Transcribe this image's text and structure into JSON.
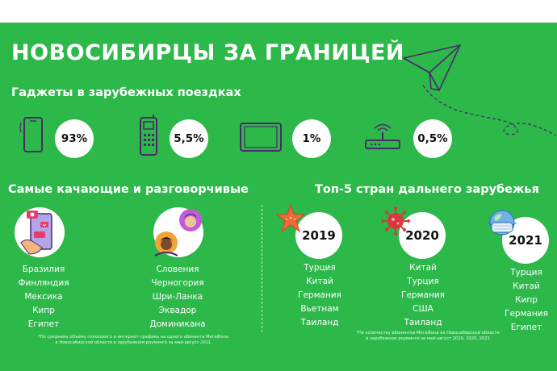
{
  "title": "НОВОСИБИРЦЫ ЗА ГРАНИЦЕЙ",
  "gadgets": {
    "heading": "Гаджеты в зарубежных поездках",
    "items": [
      {
        "icon": "smartphone-icon",
        "value": "93%"
      },
      {
        "icon": "feature-phone-icon",
        "value": "5,5%"
      },
      {
        "icon": "tablet-icon",
        "value": "1%"
      },
      {
        "icon": "router-icon",
        "value": "0,5%"
      }
    ]
  },
  "talkative": {
    "heading": "Самые качающие и разговорчивые",
    "internet_countries": [
      "Бразилия",
      "Финляндия",
      "Мексика",
      "Кипр",
      "Египет"
    ],
    "voice_countries": [
      "Словения",
      "Черногория",
      "Шри-Ланка",
      "Эквадор",
      "Доминикана"
    ],
    "footnote": [
      "*По среднему объему голосового и интернет-трафика на одного абонента МегаФона",
      "в Новосибирской области в зарубежном роуминге за май-август 2021"
    ]
  },
  "top5": {
    "heading": "Топ-5 стран дальнего зарубежья",
    "years": [
      {
        "year": "2019",
        "icon": "starfish-icon",
        "countries": [
          "Турция",
          "Китай",
          "Германия",
          "Вьетнам",
          "Таиланд"
        ]
      },
      {
        "year": "2020",
        "icon": "virus-icon",
        "countries": [
          "Китай",
          "Турция",
          "Германия",
          "США",
          "Таиланд"
        ]
      },
      {
        "year": "2021",
        "icon": "masked-globe-icon",
        "countries": [
          "Турция",
          "Китай",
          "Кипр",
          "Германия",
          "Египет"
        ]
      }
    ],
    "footnote": [
      "*По количеству абонентов МегаФона из Новосибирской области",
      "в зарубежном роуминге за май-август 2019, 2020, 2021"
    ]
  },
  "colors": {
    "background": "#2db84a",
    "accent_purple": "#7a3fa0",
    "text": "#ffffff"
  }
}
